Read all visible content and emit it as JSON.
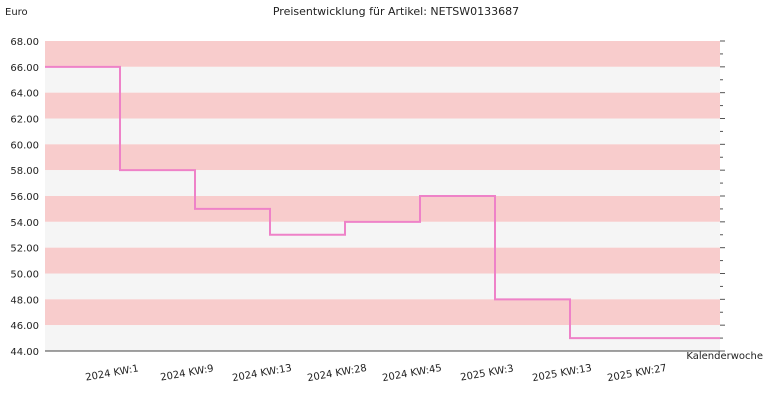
{
  "chart_data": {
    "type": "line",
    "step": true,
    "title": "Preisentwicklung für Artikel: NETSW0133687",
    "ylabel": "Euro",
    "xlabel": "Kalenderwoche",
    "ylim": [
      44,
      68
    ],
    "ytick_step": 2,
    "yticks": [
      "44.00",
      "46.00",
      "48.00",
      "50.00",
      "52.00",
      "54.00",
      "56.00",
      "58.00",
      "60.00",
      "62.00",
      "64.00",
      "66.00",
      "68.00"
    ],
    "categories": [
      "2024 KW:1",
      "2024 KW:9",
      "2024 KW:13",
      "2024 KW:28",
      "2024 KW:45",
      "2025 KW:3",
      "2025 KW:13",
      "2025 KW:27"
    ],
    "values": [
      66,
      58,
      55,
      53,
      54,
      56,
      48,
      45
    ],
    "band_colors": [
      "#f8cccc",
      "#f5f5f5"
    ],
    "line_color": "#ee82c8",
    "grid": false
  }
}
